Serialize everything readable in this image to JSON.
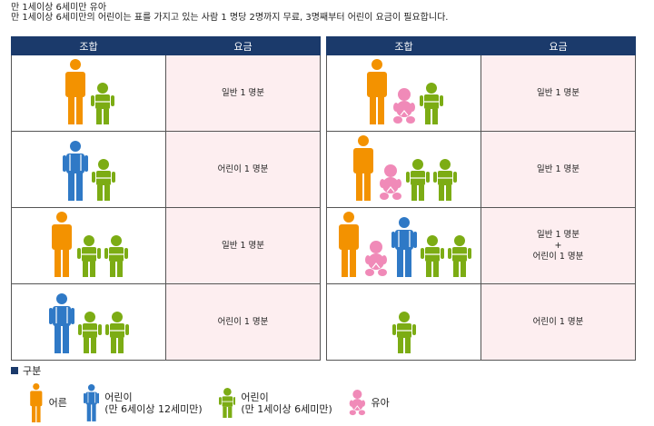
{
  "header": {
    "line1": "만 1세이상 6세미만 유아",
    "line2": "만 1세이상 6세미만의 어린이는 표를 가지고 있는 사람 1 명당 2명까지 무료, 3명째부터 어린이 요금이 필요합니다."
  },
  "table_headers": {
    "combo": "조합",
    "fare": "요금"
  },
  "left_rows": [
    {
      "figures": [
        "adult",
        "child-small"
      ],
      "fare": [
        "일반 1 명분"
      ]
    },
    {
      "figures": [
        "child-large",
        "child-small"
      ],
      "fare": [
        "어린이 1 명분"
      ]
    },
    {
      "figures": [
        "adult",
        "child-small",
        "child-small"
      ],
      "fare": [
        "일반 1 명분"
      ]
    },
    {
      "figures": [
        "child-large",
        "child-small",
        "child-small"
      ],
      "fare": [
        "어린이 1 명분"
      ]
    }
  ],
  "right_rows": [
    {
      "figures": [
        "adult",
        "infant",
        "child-small"
      ],
      "fare": [
        "일반 1 명분"
      ]
    },
    {
      "figures": [
        "adult",
        "infant",
        "child-small",
        "child-small"
      ],
      "fare": [
        "일반 1 명분"
      ]
    },
    {
      "figures": [
        "adult",
        "infant",
        "child-large",
        "child-small",
        "child-small"
      ],
      "fare": [
        "일반 1 명분",
        "+",
        "어린이 1 명분"
      ]
    },
    {
      "figures": [
        "child-small"
      ],
      "fare": [
        "어린이 1 명분"
      ]
    }
  ],
  "legend": {
    "title": "구분",
    "items": [
      {
        "icon": "adult",
        "label": "어른",
        "sub": ""
      },
      {
        "icon": "child-large",
        "label": "어린이",
        "sub": "(만 6세이상 12세미만)"
      },
      {
        "icon": "child-small",
        "label": "어린이",
        "sub": "(만 1세이상 6세미만)"
      },
      {
        "icon": "infant",
        "label": "유아",
        "sub": ""
      }
    ]
  },
  "colors": {
    "adult": "#f39200",
    "child_large": "#2f79c6",
    "child_small": "#7cac14",
    "infant": "#f08ab8",
    "header_bg": "#1b3a6b",
    "fare_bg": "#fdeef0"
  }
}
